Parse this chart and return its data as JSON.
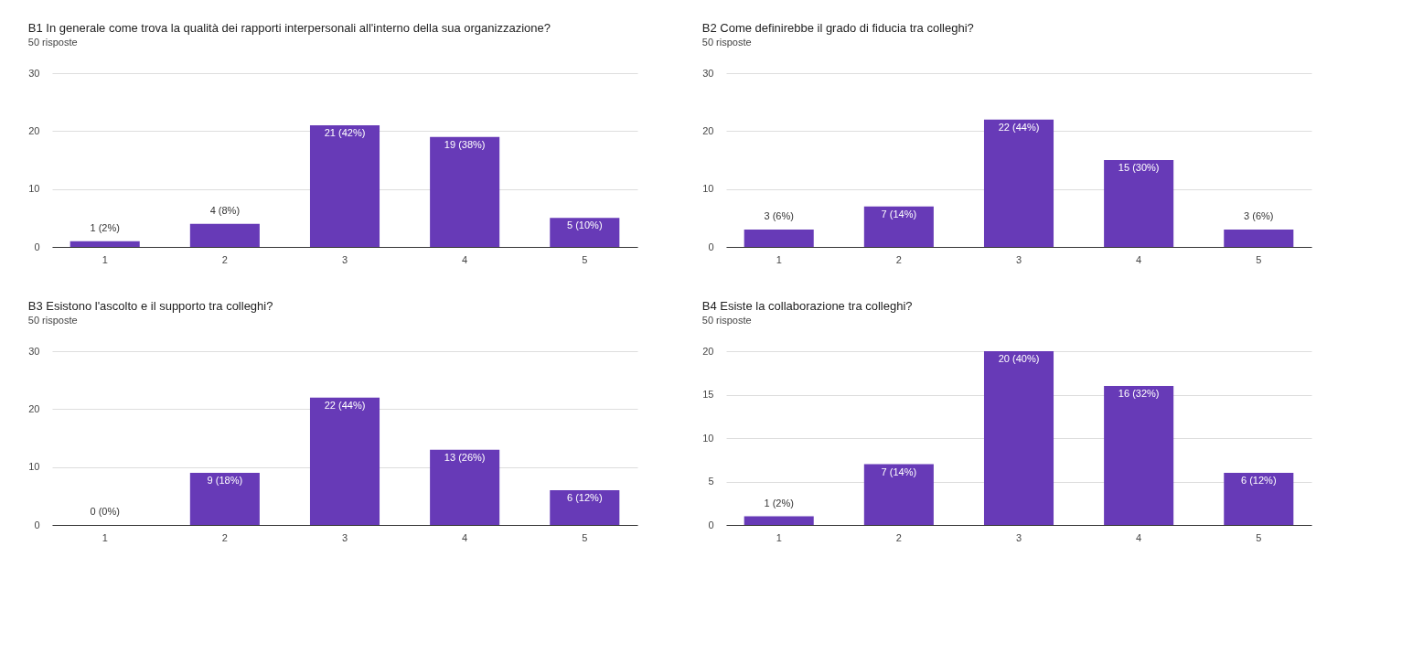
{
  "chart_data": [
    {
      "type": "bar",
      "title": "B1 In generale come trova la qualità dei rapporti interpersonali all'interno della sua organizzazione?",
      "subtitle": "50 risposte",
      "categories": [
        "1",
        "2",
        "3",
        "4",
        "5"
      ],
      "values": [
        1,
        4,
        21,
        19,
        5
      ],
      "value_labels": [
        "1 (2%)",
        "4 (8%)",
        "21 (42%)",
        "19 (38%)",
        "5 (10%)"
      ],
      "color": "#673ab7",
      "ylim": [
        0,
        30
      ],
      "yticks": [
        0,
        10,
        20,
        30
      ],
      "grid": "y"
    },
    {
      "type": "bar",
      "title": "B2 Come definirebbe il grado di fiducia tra colleghi?",
      "subtitle": "50 risposte",
      "categories": [
        "1",
        "2",
        "3",
        "4",
        "5"
      ],
      "values": [
        3,
        7,
        22,
        15,
        3
      ],
      "value_labels": [
        "3 (6%)",
        "7 (14%)",
        "22 (44%)",
        "15 (30%)",
        "3 (6%)"
      ],
      "color": "#673ab7",
      "ylim": [
        0,
        30
      ],
      "yticks": [
        0,
        10,
        20,
        30
      ],
      "grid": "y"
    },
    {
      "type": "bar",
      "title": "B3 Esistono l'ascolto e il supporto tra colleghi?",
      "subtitle": "50 risposte",
      "categories": [
        "1",
        "2",
        "3",
        "4",
        "5"
      ],
      "values": [
        0,
        9,
        22,
        13,
        6
      ],
      "value_labels": [
        "0 (0%)",
        "9 (18%)",
        "22 (44%)",
        "13 (26%)",
        "6 (12%)"
      ],
      "color": "#673ab7",
      "ylim": [
        0,
        30
      ],
      "yticks": [
        0,
        10,
        20,
        30
      ],
      "grid": "y"
    },
    {
      "type": "bar",
      "title": "B4 Esiste la collaborazione tra colleghi?",
      "subtitle": "50 risposte",
      "categories": [
        "1",
        "2",
        "3",
        "4",
        "5"
      ],
      "values": [
        1,
        7,
        20,
        16,
        6
      ],
      "value_labels": [
        "1 (2%)",
        "7 (14%)",
        "20 (40%)",
        "16 (32%)",
        "6 (12%)"
      ],
      "color": "#673ab7",
      "ylim": [
        0,
        20
      ],
      "yticks": [
        0,
        5,
        10,
        15,
        20
      ],
      "grid": "y"
    }
  ]
}
